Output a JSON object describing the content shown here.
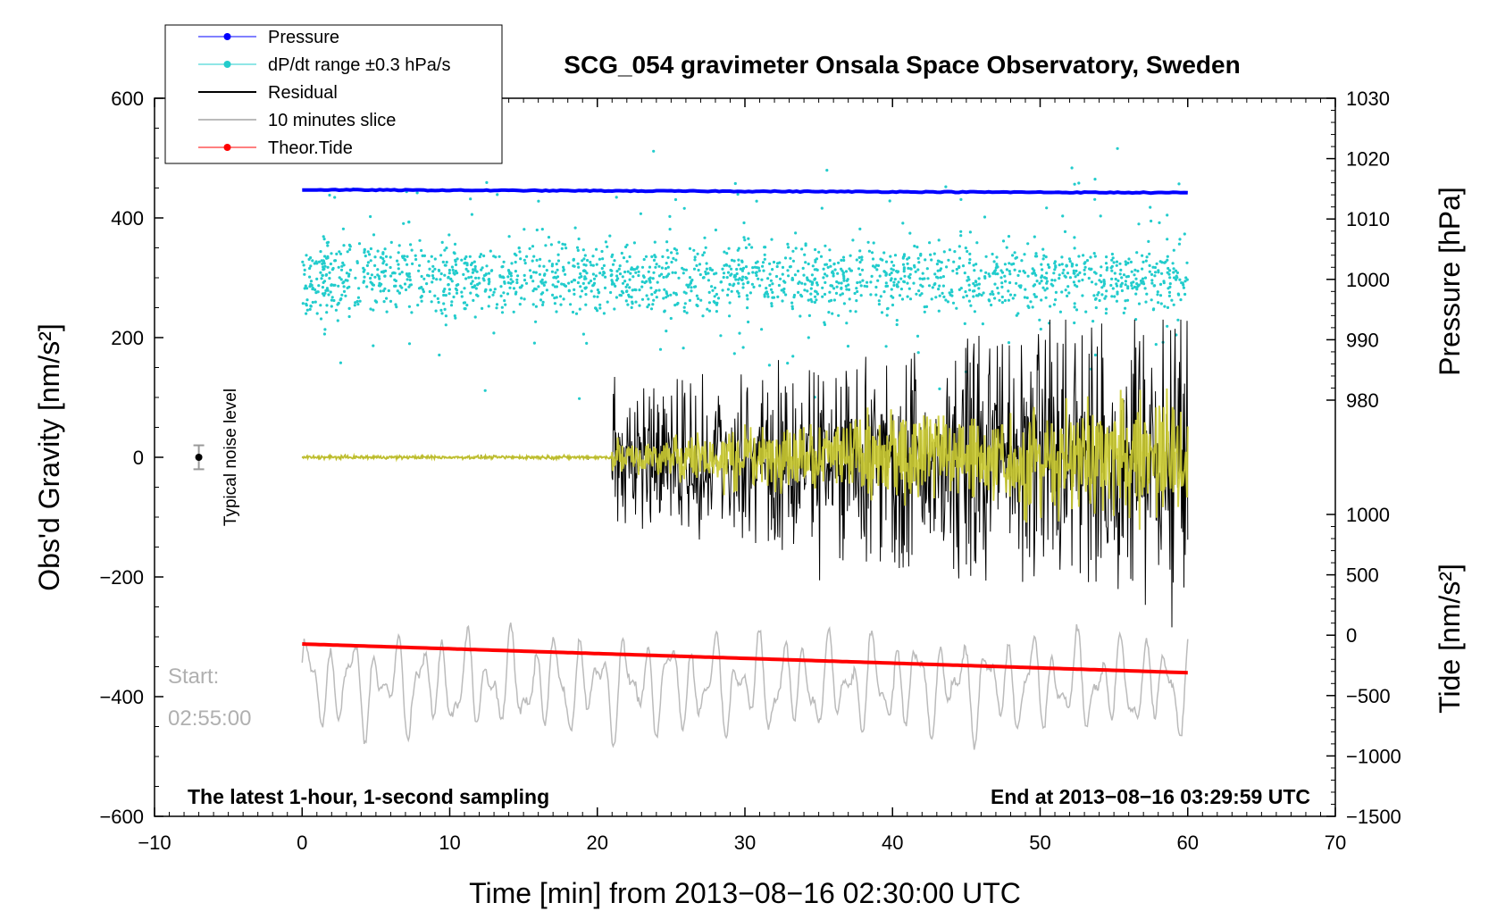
{
  "title": "SCG_054 gravimeter Onsala Space Observatory, Sweden",
  "legend": [
    {
      "label": "Pressure",
      "color": "#0000ff",
      "marker": "dot"
    },
    {
      "label": "dP/dt range ±0.3 hPa/s",
      "color": "#22cccc",
      "marker": "dot"
    },
    {
      "label": "Residual",
      "color": "#000000",
      "marker": "line"
    },
    {
      "label": "10 minutes slice",
      "color": "#bbbbbb",
      "marker": "line"
    },
    {
      "label": "Theor.Tide",
      "color": "#ff0000",
      "marker": "dot"
    }
  ],
  "annotations": {
    "bottom_left": "The latest 1-hour, 1-second sampling",
    "bottom_right": "End at 2013−08−16 03:29:59 UTC",
    "start_label": "Start:",
    "start_time": "02:55:00",
    "noise_label": "Typical noise level"
  },
  "chart_data": {
    "type": "line",
    "title": "SCG_054 gravimeter Onsala Space Observatory, Sweden",
    "xlabel": "Time [min] from 2013−08−16 02:30:00 UTC",
    "ylabel_left": "Obs'd Gravity [nm/s²]",
    "ylabel_right_top": "Pressure [hPa]",
    "ylabel_right_bottom": "Tide [nm/s²]",
    "xlim": [
      -10,
      70
    ],
    "ylim_left": [
      -600,
      600
    ],
    "x_ticks": [
      "−10",
      "0",
      "10",
      "20",
      "30",
      "40",
      "50",
      "60",
      "70"
    ],
    "y_ticks_left": [
      "−600",
      "−400",
      "−200",
      "0",
      "200",
      "400",
      "600"
    ],
    "y_ticks_pressure": [
      "980",
      "990",
      "1000",
      "1010",
      "1020",
      "1030"
    ],
    "y_ticks_tide": [
      "−1500",
      "−1000",
      "−500",
      "0",
      "500",
      "1000"
    ],
    "pressure": {
      "name": "Pressure",
      "x_range": [
        0,
        60
      ],
      "gravity_axis_level": [
        447,
        442
      ],
      "hPa_approx": [
        1014.5,
        1014.3
      ]
    },
    "dpdt": {
      "name": "dP/dt range ±0.3 hPa/s",
      "center": 300,
      "spread": 120
    },
    "residual": {
      "name": "Residual",
      "quiet_until_min": 21,
      "amplitude_start": 90,
      "amplitude_end": 200,
      "peak_min": -285,
      "peak_max": 230
    },
    "slice": {
      "name": "10 minutes slice",
      "center": -380,
      "amplitude": 90
    },
    "tide": {
      "name": "Theor.Tide",
      "x_range": [
        0,
        60
      ],
      "gravity_axis_level": [
        -312,
        -360
      ]
    },
    "noise_marker": {
      "x": -7,
      "y": 0,
      "err": 20
    }
  }
}
